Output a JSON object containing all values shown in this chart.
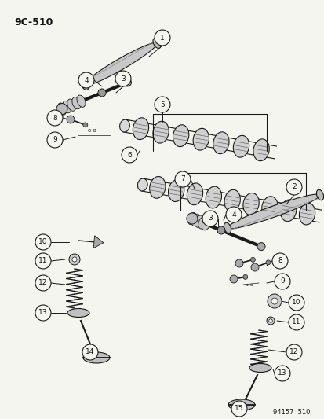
{
  "title": "9C-510",
  "footer": "94157  510",
  "bg_color": "#f5f5f0",
  "line_color": "#1a1a1a",
  "label_color": "#111111",
  "fig_width": 4.14,
  "fig_height": 5.33,
  "dpi": 100
}
